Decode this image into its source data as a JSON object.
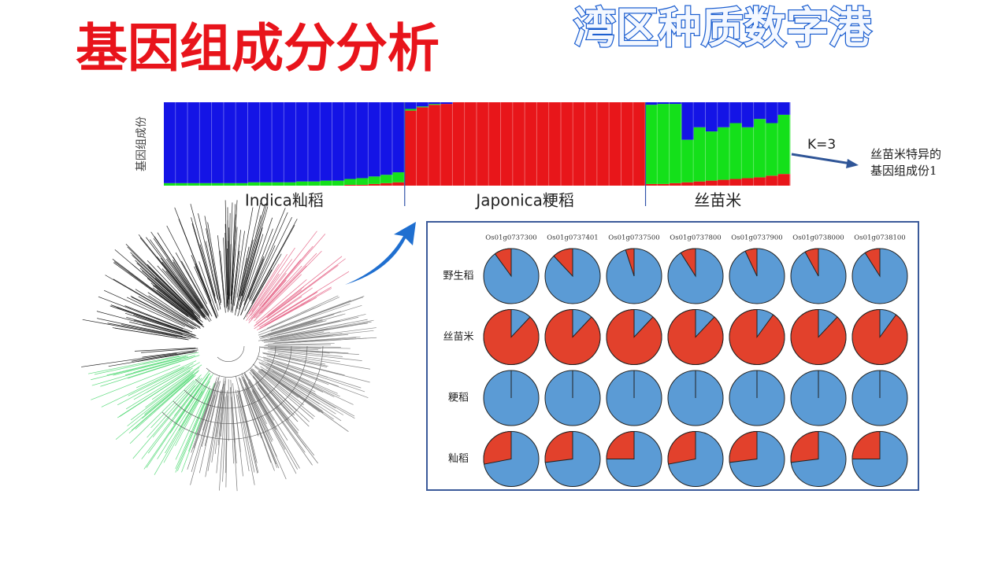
{
  "slide": {
    "title": "基因组成分分析",
    "brand": "湾区种质数字港"
  },
  "chart_data": [
    {
      "type": "structure",
      "y_label": "基因组成份",
      "ylim": [
        0,
        1
      ],
      "groups": [
        {
          "label": "Indica籼稻",
          "series": [
            {
              "color": "#e8161a",
              "values": [
                0,
                0,
                0,
                0,
                0,
                0,
                0,
                0,
                0,
                0,
                0,
                0,
                0,
                0,
                0,
                0.01,
                0.01,
                0.02,
                0.03,
                0.04
              ]
            },
            {
              "color": "#14e01a",
              "values": [
                0.03,
                0.03,
                0.03,
                0.03,
                0.03,
                0.03,
                0.03,
                0.04,
                0.04,
                0.04,
                0.04,
                0.05,
                0.05,
                0.06,
                0.06,
                0.07,
                0.08,
                0.09,
                0.1,
                0.12
              ]
            },
            {
              "color": "#1414e6",
              "values": [
                0.97,
                0.97,
                0.97,
                0.97,
                0.97,
                0.97,
                0.97,
                0.96,
                0.96,
                0.96,
                0.96,
                0.95,
                0.95,
                0.94,
                0.94,
                0.92,
                0.91,
                0.89,
                0.87,
                0.84
              ]
            }
          ]
        },
        {
          "label": "Japonica粳稻",
          "series": [
            {
              "color": "#e8161a",
              "values": [
                0.9,
                0.94,
                0.97,
                0.98,
                1,
                1,
                1,
                1,
                1,
                1,
                1,
                1,
                1,
                1,
                1,
                1,
                1,
                1,
                1,
                1
              ]
            },
            {
              "color": "#14e01a",
              "values": [
                0.02,
                0.01,
                0.01,
                0,
                0,
                0,
                0,
                0,
                0,
                0,
                0,
                0,
                0,
                0,
                0,
                0,
                0,
                0,
                0,
                0
              ]
            },
            {
              "color": "#1414e6",
              "values": [
                0.08,
                0.05,
                0.02,
                0.02,
                0,
                0,
                0,
                0,
                0,
                0,
                0,
                0,
                0,
                0,
                0,
                0,
                0,
                0,
                0,
                0
              ]
            }
          ]
        },
        {
          "label": "丝苗米",
          "series": [
            {
              "color": "#e8161a",
              "values": [
                0.02,
                0.02,
                0.03,
                0.04,
                0.05,
                0.06,
                0.07,
                0.08,
                0.09,
                0.1,
                0.12,
                0.14
              ]
            },
            {
              "color": "#14e01a",
              "values": [
                0.95,
                0.96,
                0.95,
                0.51,
                0.65,
                0.59,
                0.63,
                0.67,
                0.61,
                0.7,
                0.63,
                0.71
              ]
            },
            {
              "color": "#1414e6",
              "values": [
                0.03,
                0.02,
                0.02,
                0.45,
                0.3,
                0.35,
                0.3,
                0.25,
                0.3,
                0.2,
                0.25,
                0.15
              ]
            }
          ]
        }
      ],
      "annotation": {
        "k": "K=3",
        "lines": [
          "丝苗米特异的",
          "基因组成份1"
        ]
      }
    },
    {
      "type": "pie-grid",
      "columns": [
        "Os01g0737300",
        "Os01g0737401",
        "Os01g0737500",
        "Os01g0737800",
        "Os01g0737900",
        "Os01g0738000",
        "Os01g0738100"
      ],
      "rows": [
        "野生稻",
        "丝苗米",
        "粳稻",
        "籼稻"
      ],
      "colors": {
        "slice": "#e2412c",
        "base": "#5b9bd5"
      },
      "values": [
        [
          10,
          12,
          5,
          9,
          7,
          8,
          9
        ],
        [
          88,
          88,
          88,
          88,
          90,
          88,
          90
        ],
        [
          0,
          0,
          0,
          0,
          0,
          0,
          0
        ],
        [
          28,
          27,
          25,
          28,
          27,
          27,
          25
        ]
      ]
    }
  ]
}
